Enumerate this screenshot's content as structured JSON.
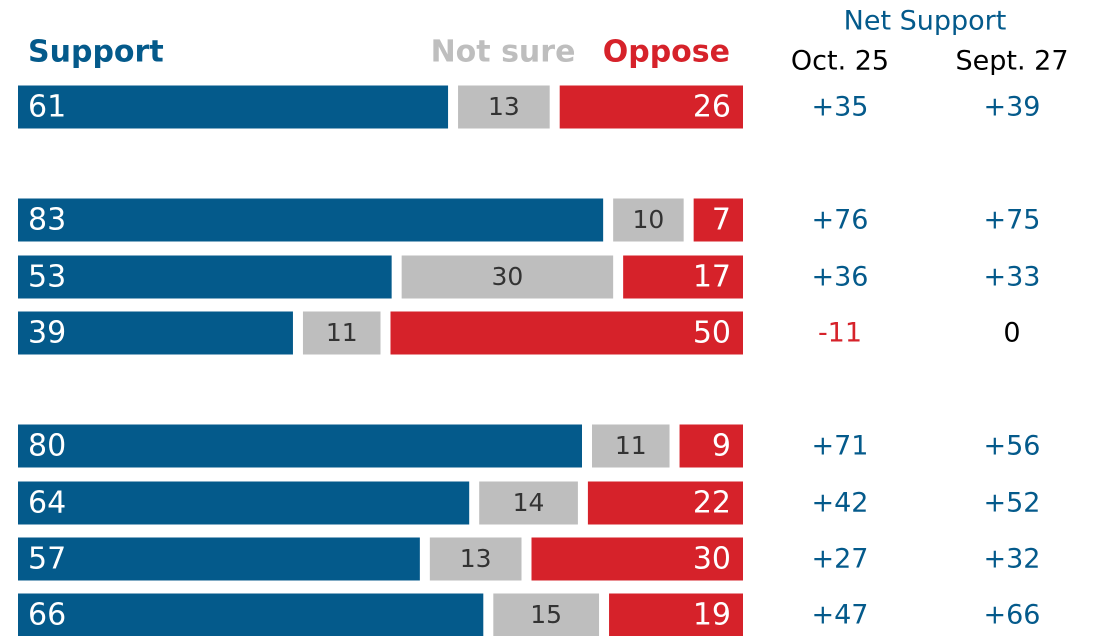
{
  "chart_data": {
    "type": "stacked_bar",
    "categories": [
      null,
      null,
      null,
      null,
      null,
      null,
      null,
      null
    ],
    "series": [
      {
        "name": "Support",
        "color": "#045a8b",
        "values": [
          61,
          83,
          53,
          39,
          80,
          64,
          57,
          66
        ]
      },
      {
        "name": "Not sure",
        "color": "#bebebe",
        "values": [
          13,
          10,
          30,
          11,
          11,
          14,
          13,
          15
        ]
      },
      {
        "name": "Oppose",
        "color": "#d6222a",
        "values": [
          26,
          7,
          17,
          50,
          9,
          22,
          30,
          19
        ]
      }
    ],
    "net_support": {
      "title": "Net Support",
      "positive_color": "#045a8b",
      "negative_color": "#d6222a",
      "zero_color": "#000000",
      "columns": [
        {
          "name": "Oct. 25",
          "values": [
            35,
            76,
            36,
            -11,
            71,
            42,
            27,
            47
          ],
          "value_labels": [
            "+35",
            "+76",
            "+36",
            "-11",
            "+71",
            "+42",
            "+27",
            "+47"
          ]
        },
        {
          "name": "Sept. 27",
          "values": [
            39,
            75,
            33,
            0,
            56,
            52,
            32,
            66
          ],
          "value_labels": [
            "+39",
            "+75",
            "+33",
            "0",
            "+56",
            "+52",
            "+32",
            "+66"
          ]
        }
      ]
    }
  }
}
